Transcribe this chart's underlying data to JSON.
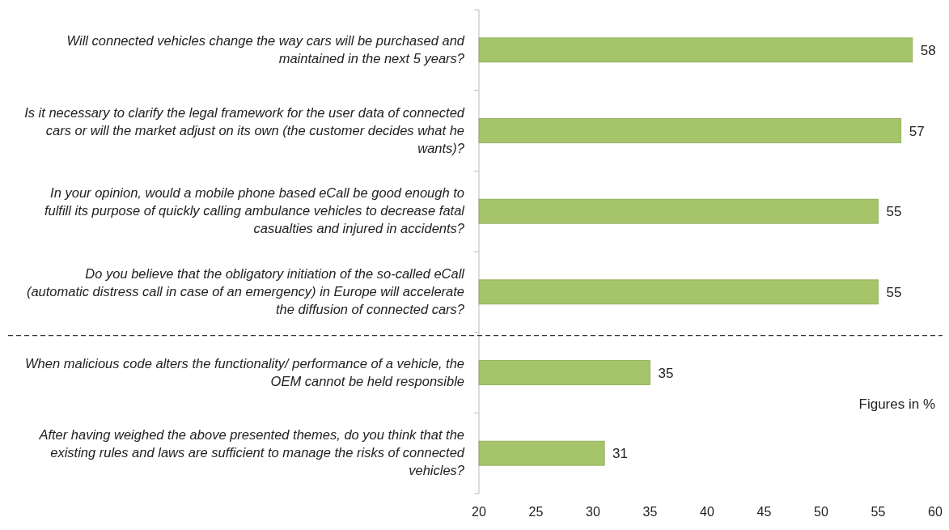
{
  "chart_data": {
    "type": "bar",
    "orientation": "horizontal",
    "categories": [
      "Will connected vehicles change the way cars will be purchased and maintained in the next 5 years?",
      "Is it necessary to clarify the legal framework for the user data of connected cars or will the market adjust on its own (the customer decides what he wants)?",
      "In your opinion, would a mobile phone based eCall be good enough to fulfill its purpose of quickly calling ambulance vehicles to decrease fatal casualties and injured in accidents?",
      "Do you believe that the obligatory initiation of the so-called eCall (automatic distress call in case of an emergency) in Europe will accelerate the diffusion of connected cars?",
      "When malicious code alters the functionality/ performance of a vehicle, the OEM cannot be held responsible",
      "After having weighed the above presented themes, do you think that the existing rules and laws are sufficient to manage the risks of connected vehicles?"
    ],
    "values": [
      58,
      57,
      55,
      55,
      35,
      31
    ],
    "color": "#a6c46a",
    "xlim": [
      20,
      60
    ],
    "xticks": [
      20,
      25,
      30,
      35,
      40,
      45,
      50,
      55,
      60
    ],
    "data_labels": true,
    "grid": false,
    "annotations": [
      "Figures in %"
    ]
  }
}
